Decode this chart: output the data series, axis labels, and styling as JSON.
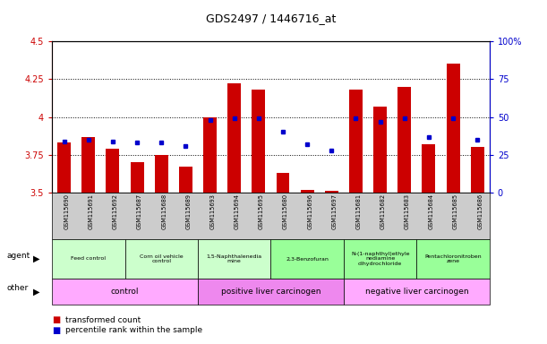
{
  "title": "GDS2497 / 1446716_at",
  "samples": [
    "GSM115690",
    "GSM115691",
    "GSM115692",
    "GSM115687",
    "GSM115688",
    "GSM115689",
    "GSM115693",
    "GSM115694",
    "GSM115695",
    "GSM115680",
    "GSM115696",
    "GSM115697",
    "GSM115681",
    "GSM115682",
    "GSM115683",
    "GSM115684",
    "GSM115685",
    "GSM115686"
  ],
  "transformed_count": [
    3.83,
    3.87,
    3.79,
    3.7,
    3.75,
    3.67,
    4.0,
    4.22,
    4.18,
    3.63,
    3.52,
    3.51,
    4.18,
    4.07,
    4.2,
    3.82,
    4.35,
    3.8
  ],
  "percentile_rank": [
    34,
    35,
    34,
    33,
    33,
    31,
    48,
    49,
    49,
    40,
    32,
    28,
    49,
    47,
    49,
    37,
    49,
    35
  ],
  "ylim_left": [
    3.5,
    4.5
  ],
  "ylim_right": [
    0,
    100
  ],
  "yticks_left": [
    3.5,
    3.75,
    4.0,
    4.25,
    4.5
  ],
  "yticks_right": [
    0,
    25,
    50,
    75,
    100
  ],
  "bar_color": "#cc0000",
  "dot_color": "#0000cc",
  "agent_groups": [
    {
      "label": "Feed control",
      "start": 0,
      "end": 3,
      "color": "#ccffcc"
    },
    {
      "label": "Corn oil vehicle\ncontrol",
      "start": 3,
      "end": 6,
      "color": "#ccffcc"
    },
    {
      "label": "1,5-Naphthalenedia\nmine",
      "start": 6,
      "end": 9,
      "color": "#ccffcc"
    },
    {
      "label": "2,3-Benzofuran",
      "start": 9,
      "end": 12,
      "color": "#99ff99"
    },
    {
      "label": "N-(1-naphthyl)ethyle\nnediamine\ndihydrochloride",
      "start": 12,
      "end": 15,
      "color": "#99ff99"
    },
    {
      "label": "Pentachloronitroben\nzene",
      "start": 15,
      "end": 18,
      "color": "#99ff99"
    }
  ],
  "other_groups": [
    {
      "label": "control",
      "start": 0,
      "end": 6,
      "color": "#ffaaff"
    },
    {
      "label": "positive liver carcinogen",
      "start": 6,
      "end": 12,
      "color": "#ee88ee"
    },
    {
      "label": "negative liver carcinogen",
      "start": 12,
      "end": 18,
      "color": "#ffaaff"
    }
  ],
  "tick_bg_color": "#cccccc",
  "bar_width": 0.55
}
